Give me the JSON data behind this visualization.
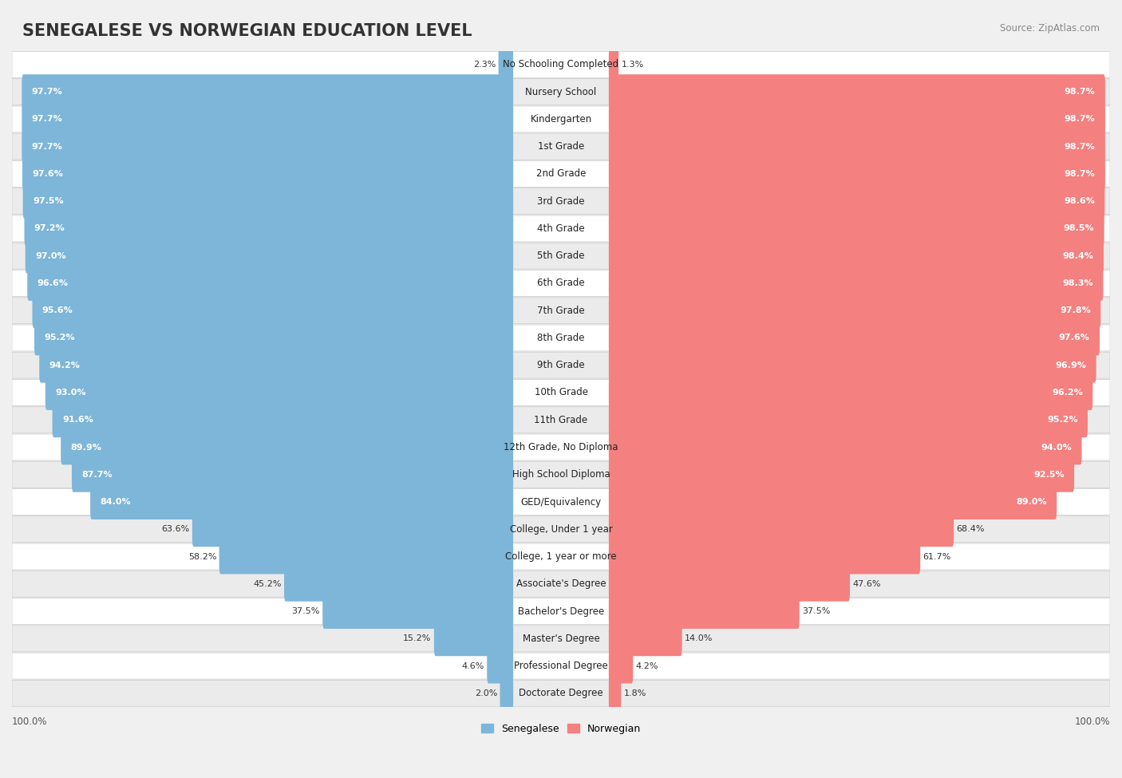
{
  "title": "SENEGALESE VS NORWEGIAN EDUCATION LEVEL",
  "source": "Source: ZipAtlas.com",
  "categories": [
    "No Schooling Completed",
    "Nursery School",
    "Kindergarten",
    "1st Grade",
    "2nd Grade",
    "3rd Grade",
    "4th Grade",
    "5th Grade",
    "6th Grade",
    "7th Grade",
    "8th Grade",
    "9th Grade",
    "10th Grade",
    "11th Grade",
    "12th Grade, No Diploma",
    "High School Diploma",
    "GED/Equivalency",
    "College, Under 1 year",
    "College, 1 year or more",
    "Associate's Degree",
    "Bachelor's Degree",
    "Master's Degree",
    "Professional Degree",
    "Doctorate Degree"
  ],
  "senegalese": [
    2.3,
    97.7,
    97.7,
    97.7,
    97.6,
    97.5,
    97.2,
    97.0,
    96.6,
    95.6,
    95.2,
    94.2,
    93.0,
    91.6,
    89.9,
    87.7,
    84.0,
    63.6,
    58.2,
    45.2,
    37.5,
    15.2,
    4.6,
    2.0
  ],
  "norwegian": [
    1.3,
    98.7,
    98.7,
    98.7,
    98.7,
    98.6,
    98.5,
    98.4,
    98.3,
    97.8,
    97.6,
    96.9,
    96.2,
    95.2,
    94.0,
    92.5,
    89.0,
    68.4,
    61.7,
    47.6,
    37.5,
    14.0,
    4.2,
    1.8
  ],
  "senegalese_color": "#7EB6D9",
  "norwegian_color": "#F48080",
  "bg_color": "#F0F0F0",
  "title_fontsize": 15,
  "label_fontsize": 8.5,
  "value_fontsize": 8.0
}
